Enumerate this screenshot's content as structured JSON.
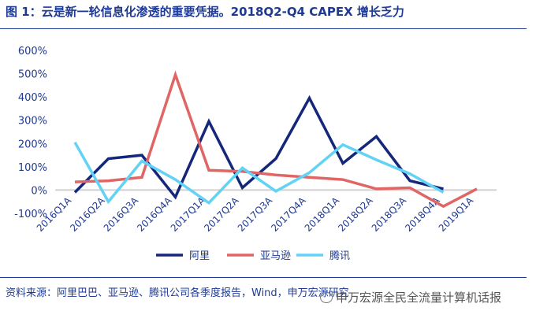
{
  "title": "图 1：云是新一轮信息化渗透的重要凭据。2018Q2-Q4 CAPEX 增长乏力",
  "source": "资料来源：阿里巴巴、亚马逊、腾讯公司各季度报告，Wind，申万宏源研究",
  "watermark": "申万宏源全民全流量计算机话报",
  "chart_data": {
    "type": "line",
    "categories": [
      "2016Q1A",
      "2016Q2A",
      "2016Q3A",
      "2016Q4A",
      "2017Q1A",
      "2017Q2A",
      "2017Q3A",
      "2017Q4A",
      "2018Q1A",
      "2018Q2A",
      "2018Q3A",
      "2018Q4A",
      "2019Q1A"
    ],
    "y_tick_labels": [
      "600%",
      "500%",
      "400%",
      "300%",
      "200%",
      "100%",
      "0%",
      "-100%"
    ],
    "ylim": [
      -100,
      600
    ],
    "grid": false,
    "legend_position": "bottom",
    "series": [
      {
        "name": "阿里",
        "color": "#14277a",
        "values": [
          -10,
          135,
          150,
          -30,
          295,
          10,
          135,
          395,
          115,
          230,
          40,
          5,
          null
        ]
      },
      {
        "name": "亚马逊",
        "color": "#e06666",
        "values": [
          35,
          40,
          55,
          495,
          85,
          80,
          65,
          55,
          45,
          5,
          10,
          -70,
          5
        ]
      },
      {
        "name": "腾讯",
        "color": "#62d2f5",
        "values": [
          205,
          -50,
          125,
          45,
          -55,
          95,
          -5,
          75,
          195,
          130,
          70,
          -10,
          null
        ]
      }
    ]
  }
}
